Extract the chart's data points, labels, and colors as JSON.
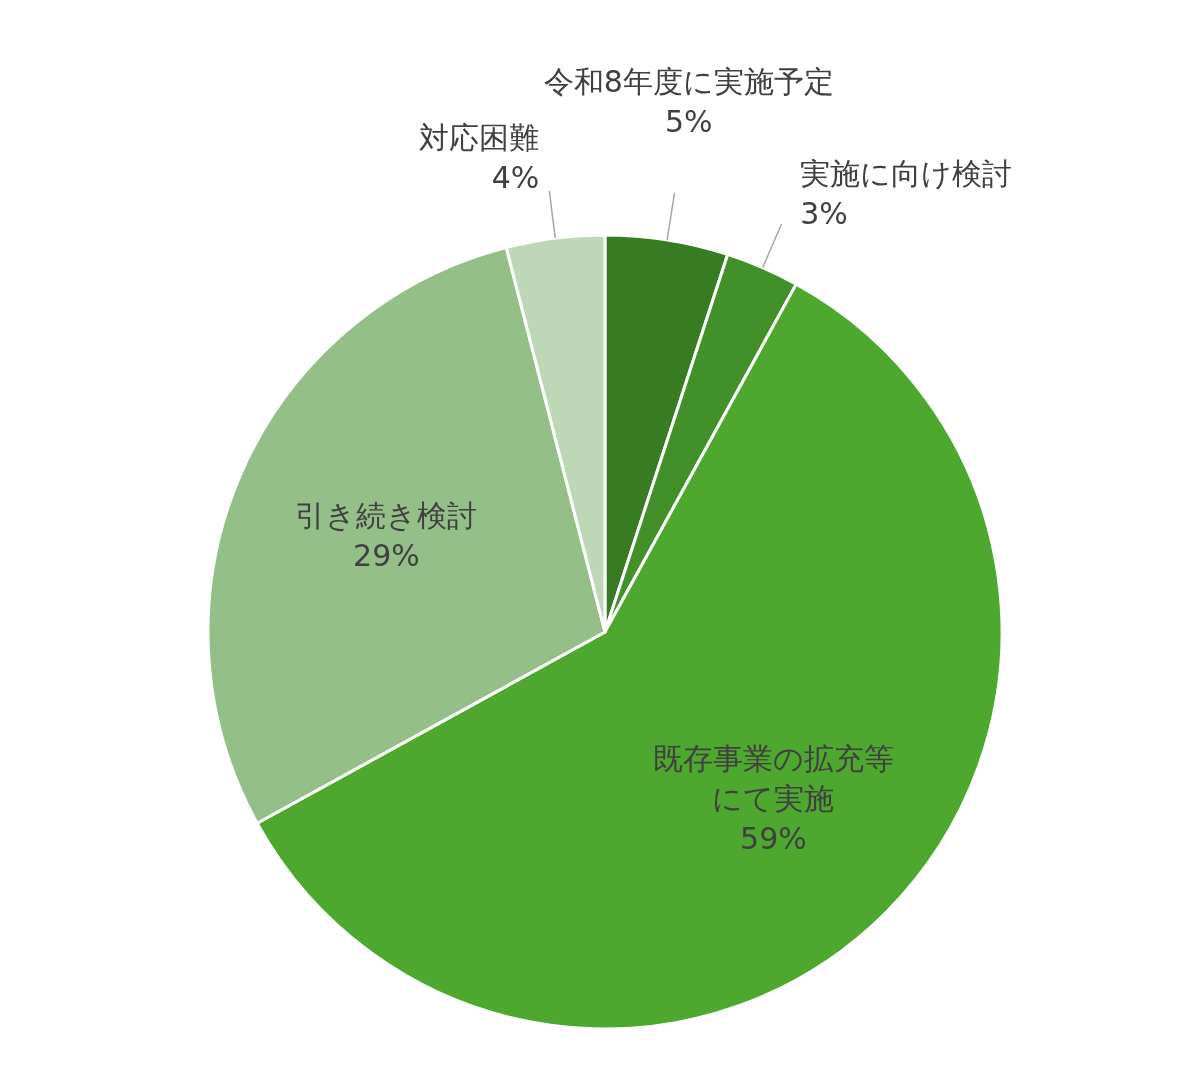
{
  "chart_data": {
    "type": "pie",
    "categories": [
      "令和8年度に実施予定",
      "実施に向け検討",
      "既存事業の拡充等にて実施",
      "引き続き検討",
      "対応困難"
    ],
    "values": [
      5,
      3,
      59,
      29,
      4
    ],
    "value_labels": [
      "5%",
      "3%",
      "59%",
      "29%",
      "4%"
    ],
    "colors": [
      "#377b22",
      "#41902a",
      "#4ea72e",
      "#94bf89",
      "#bed7b7"
    ]
  }
}
